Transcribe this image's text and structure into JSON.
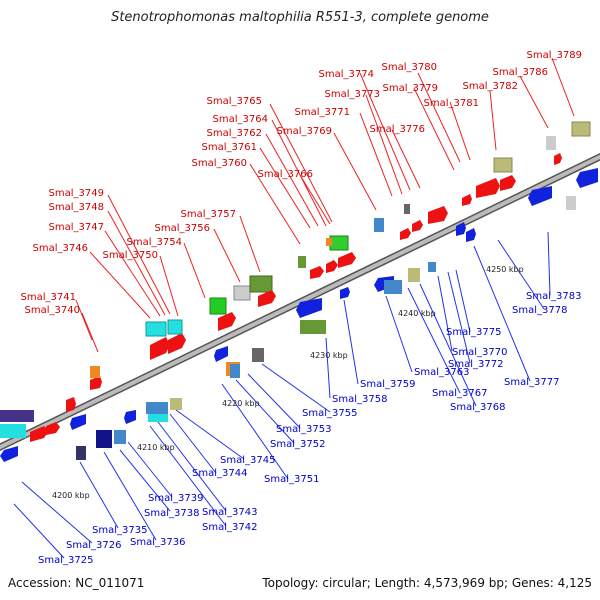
{
  "title": "Stenotrophomonas maltophilia R551-3, complete genome",
  "accession": "Accession: NC_011071",
  "topology": "Topology: circular; Length: 4,573,969 bp; Genes: 4,125",
  "colors": {
    "forward_label": "#cc0000",
    "reverse_label": "#0000cc",
    "forward_gene": "#ee1111",
    "reverse_gene": "#1122dd",
    "axis": "#888888",
    "tick": "#228822"
  },
  "scale_labels": [
    "4200 kbp",
    "4210 kbp",
    "4220 kbp",
    "4230 kbp",
    "4240 kbp",
    "4250 kbp"
  ],
  "forward_genes": [
    "Smal_3740",
    "Smal_3741",
    "Smal_3746",
    "Smal_3747",
    "Smal_3748",
    "Smal_3749",
    "Smal_3750",
    "Smal_3754",
    "Smal_3756",
    "Smal_3757",
    "Smal_3760",
    "Smal_3761",
    "Smal_3762",
    "Smal_3764",
    "Smal_3765",
    "Smal_3766",
    "Smal_3769",
    "Smal_3771",
    "Smal_3773",
    "Smal_3774",
    "Smal_3776",
    "Smal_3779",
    "Smal_3780",
    "Smal_3781",
    "Smal_3782",
    "Smal_3786",
    "Smal_3789"
  ],
  "reverse_genes": [
    "Smal_3725",
    "Smal_3726",
    "Smal_3735",
    "Smal_3736",
    "Smal_3738",
    "Smal_3739",
    "Smal_3742",
    "Smal_3743",
    "Smal_3744",
    "Smal_3745",
    "Smal_3751",
    "Smal_3752",
    "Smal_3753",
    "Smal_3755",
    "Smal_3758",
    "Smal_3759",
    "Smal_3763",
    "Smal_3767",
    "Smal_3768",
    "Smal_3770",
    "Smal_3772",
    "Smal_3775",
    "Smal_3777",
    "Smal_3778",
    "Smal_3783"
  ]
}
